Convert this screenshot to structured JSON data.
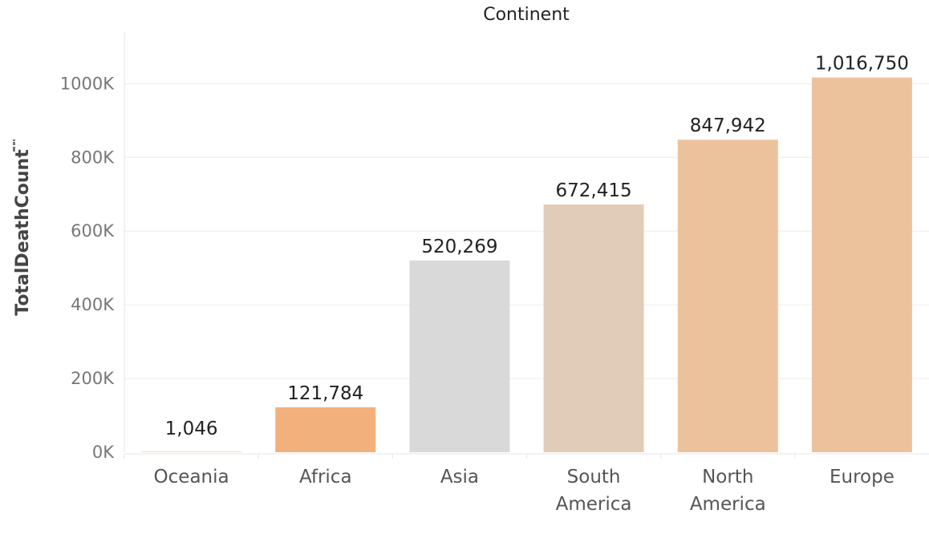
{
  "chart_data": {
    "type": "bar",
    "header": "Continent",
    "ylabel": "TotalDeathCount",
    "ylim": [
      0,
      1140000
    ],
    "yticks": [
      0,
      200000,
      400000,
      600000,
      800000,
      1000000
    ],
    "ytick_labels": [
      "0K",
      "200K",
      "400K",
      "600K",
      "800K",
      "1000K"
    ],
    "grid": true,
    "categories": [
      [
        "Oceania"
      ],
      [
        "Africa"
      ],
      [
        "Asia"
      ],
      [
        "South",
        "America"
      ],
      [
        "North",
        "America"
      ],
      [
        "Europe"
      ]
    ],
    "values": [
      1046,
      121784,
      520269,
      672415,
      847942,
      1016750
    ],
    "value_labels": [
      "1,046",
      "121,784",
      "520,269",
      "672,415",
      "847,942",
      "1,016,750"
    ],
    "colors": [
      "#f2b07c",
      "#f2b07c",
      "#d9d9d9",
      "#e0ccb8",
      "#ecc29d",
      "#ecc29d"
    ]
  }
}
